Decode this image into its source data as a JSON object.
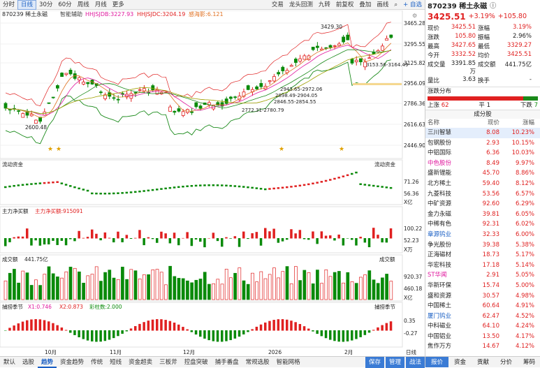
{
  "toolbar": {
    "items": [
      "分时",
      "日线",
      "30分",
      "60分",
      "周线",
      "月线",
      "更多"
    ],
    "active_index": 1,
    "right_items": [
      "交易",
      "龙头回测",
      "九转",
      "前复权",
      "叠加",
      "画线"
    ],
    "self_select": "+ 自选"
  },
  "main_chart": {
    "label": "870239 稀土永磁",
    "indicator": "智能辅助",
    "hhj_b": "HHJSJDB:3227.93",
    "hhj_c": "HHJSJDC:3204.19",
    "sensitive": "感海影:6.121",
    "y_labels": [
      "3465.28",
      "3295.55",
      "3125.82",
      "2956.09",
      "2786.36",
      "2616.63",
      "2446.90"
    ],
    "ann_high": "3429.30",
    "ann_low": "2600.48",
    "ann_range_1": "3153.56-3164.49",
    "ann_range_2": "2943.65-2972.06",
    "ann_range_3": "2898.49-2904.05",
    "ann_range_4": "2846.55-2854.55",
    "ann_range_5": "2772.31-2780.79"
  },
  "panel_flow": {
    "label": "流动资金",
    "label_r": "流动资金",
    "y1": "71.26",
    "y2": "56.36",
    "unit": "X亿"
  },
  "panel_net": {
    "label": "主力净买额",
    "value": "主力净买额:915091",
    "y1": "100.22",
    "y2": "52.23",
    "unit": "X万"
  },
  "panel_vol": {
    "label": "成交额",
    "value": "441.75亿",
    "label_r": "成交额",
    "y1": "920.37",
    "y2": "460.18",
    "unit": "X亿"
  },
  "panel_season": {
    "label": "捕捞季节",
    "x1": "X1:0.746",
    "x2": "X2:0.873",
    "cz": "彩柱数:2.000",
    "label_r": "捕捞季节",
    "y1": "0.35",
    "y2": "-0.27"
  },
  "x_axis": [
    "10月",
    "11月",
    "12月",
    "2026",
    "2月",
    "日线"
  ],
  "bottom_tabs": [
    "默认",
    "选股",
    "趋势",
    "资金趋势",
    "传统",
    "短线",
    "资金超卖",
    "三板斧",
    "控盘突破",
    "捕手番盘",
    "常规选股",
    "智能网格"
  ],
  "bottom_active": 2,
  "bottom_right": [
    "保存",
    "管理",
    "战法"
  ],
  "quote": {
    "code": "870239 稀土永磁",
    "price": "3425.51",
    "change_pct": "+3.19%",
    "change": "+105.80",
    "rows": [
      [
        "现价",
        "3425.51",
        "涨幅",
        "3.19%"
      ],
      [
        "涨跌",
        "105.80",
        "振幅",
        "2.96%"
      ],
      [
        "最高",
        "3427.65",
        "最低",
        "3329.27"
      ],
      [
        "今开",
        "3332.52",
        "均价",
        "3425.51"
      ],
      [
        "成交量",
        "3391.85万",
        "成交额",
        "441.75亿"
      ],
      [
        "量比",
        "3.63",
        "换手",
        "-"
      ]
    ],
    "dist_title": "涨跌分布",
    "up_label": "上涨",
    "up": "62",
    "flat_label": "平",
    "flat": "1",
    "down_label": "下跌",
    "down": "7"
  },
  "constituents": {
    "title": "成分股",
    "headers": [
      "名称",
      "现价",
      "涨幅"
    ],
    "rows": [
      [
        "三川智慧",
        "8.08",
        "10.23%"
      ],
      [
        "包钢股份",
        "2.93",
        "10.15%"
      ],
      [
        "中铝国际",
        "6.36",
        "10.03%"
      ],
      [
        "中色股份",
        "8.49",
        "9.97%"
      ],
      [
        "盛新锂能",
        "45.70",
        "8.86%"
      ],
      [
        "北方稀土",
        "59.40",
        "8.12%"
      ],
      [
        "九菱科技",
        "53.56",
        "6.57%"
      ],
      [
        "中矿资源",
        "92.60",
        "6.29%"
      ],
      [
        "金力永磁",
        "39.81",
        "6.05%"
      ],
      [
        "中稀有色",
        "92.31",
        "6.02%"
      ],
      [
        "章源钨业",
        "32.33",
        "6.00%"
      ],
      [
        "争光股份",
        "39.38",
        "5.38%"
      ],
      [
        "正海磁材",
        "18.73",
        "5.17%"
      ],
      [
        "华宏科技",
        "17.18",
        "5.14%"
      ],
      [
        "ST华闻",
        "2.91",
        "5.05%"
      ],
      [
        "华新环保",
        "15.74",
        "5.00%"
      ],
      [
        "盛和资源",
        "30.57",
        "4.98%"
      ],
      [
        "中国稀土",
        "60.64",
        "4.91%"
      ],
      [
        "厦门钨业",
        "62.47",
        "4.52%"
      ],
      [
        "中科磁业",
        "64.10",
        "4.24%"
      ],
      [
        "中国铝业",
        "13.50",
        "4.17%"
      ],
      [
        "焦作万方",
        "14.67",
        "4.12%"
      ]
    ],
    "name_colors": [
      "#222",
      "#222",
      "#222",
      "#e0189e",
      "#222",
      "#222",
      "#222",
      "#222",
      "#222",
      "#222",
      "#1a5fc4",
      "#222",
      "#222",
      "#222",
      "#e0189e",
      "#222",
      "#222",
      "#222",
      "#1a5fc4",
      "#222",
      "#222",
      "#222"
    ]
  },
  "right_tabs": [
    "报价",
    "资金",
    "贡献",
    "分价",
    "筹码"
  ],
  "right_active": 0
}
